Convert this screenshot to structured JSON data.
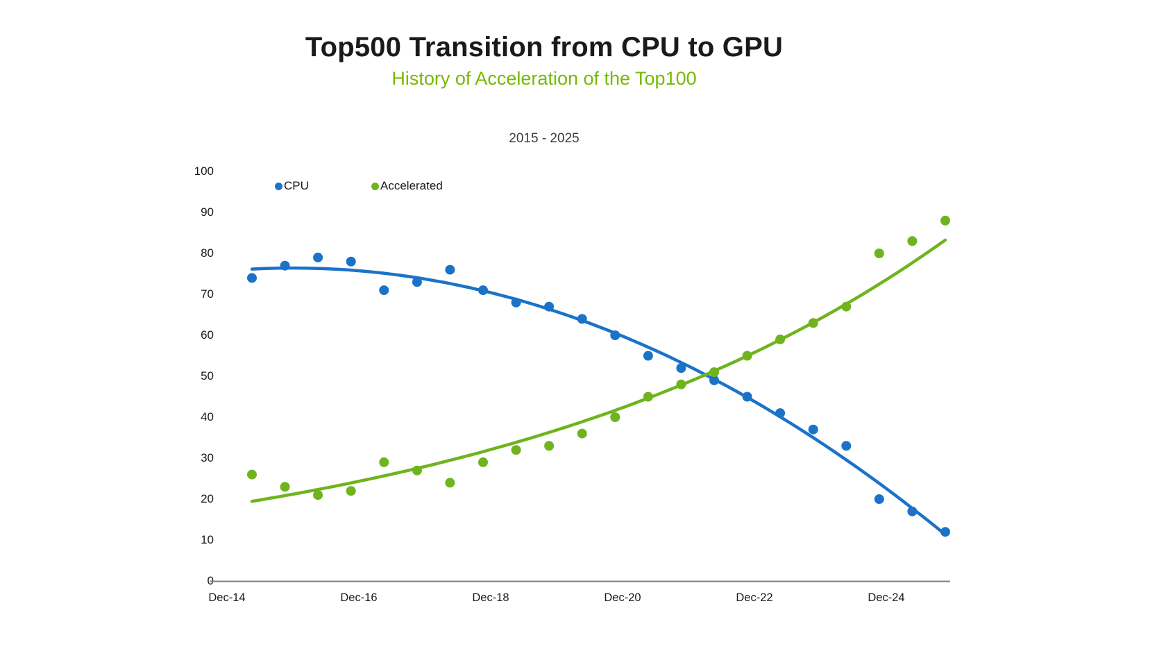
{
  "header": {
    "title": "Top500 Transition from CPU to GPU",
    "subtitle": "History of Acceleration of the Top100",
    "title_color": "#1a1a1a",
    "subtitle_color": "#76B900"
  },
  "chart_data": {
    "type": "scatter",
    "title": "Top500 Transition from CPU to GPU",
    "subtitle": "History of Acceleration of the Top100",
    "period_label": "2015 - 2025",
    "legend": {
      "position": "inside-top-left",
      "entries": [
        "CPU",
        "Accelerated"
      ]
    },
    "x_axis": {
      "tick_labels": [
        "Dec-14",
        "Dec-16",
        "Dec-18",
        "Dec-20",
        "Dec-22",
        "Dec-24"
      ],
      "grid": false
    },
    "y_axis": {
      "ticks": [
        0,
        10,
        20,
        30,
        40,
        50,
        60,
        70,
        80,
        90,
        100
      ],
      "range": [
        0,
        100
      ],
      "grid": false
    },
    "axis_color": "#7f7f7f",
    "x_years": [
      2015.45,
      2015.95,
      2016.45,
      2016.95,
      2017.45,
      2017.95,
      2018.45,
      2018.95,
      2019.45,
      2019.95,
      2020.45,
      2020.95,
      2021.45,
      2021.95,
      2022.45,
      2022.95,
      2023.45,
      2023.95,
      2024.45,
      2024.95,
      2025.45,
      2025.95
    ],
    "series": [
      {
        "name": "CPU",
        "color": "#1B73C8",
        "marker": "circle",
        "trend": "quadratic",
        "values": [
          74,
          77,
          79,
          78,
          71,
          73,
          76,
          71,
          68,
          67,
          64,
          60,
          55,
          52,
          49,
          45,
          41,
          37,
          33,
          20,
          17,
          12
        ]
      },
      {
        "name": "Accelerated",
        "color": "#6FB41E",
        "marker": "circle",
        "trend": "exponential",
        "values": [
          26,
          23,
          21,
          22,
          29,
          27,
          24,
          29,
          32,
          33,
          36,
          40,
          45,
          48,
          51,
          55,
          59,
          63,
          67,
          80,
          83,
          88
        ]
      }
    ]
  }
}
